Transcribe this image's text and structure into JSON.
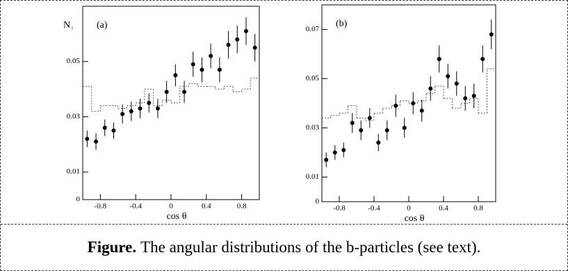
{
  "chart_data": [
    {
      "type": "scatter",
      "label": "(a)",
      "ylabel": "N",
      "ylabel_sub": "i",
      "xlabel": "cos θ",
      "x": [
        -0.95,
        -0.85,
        -0.75,
        -0.65,
        -0.55,
        -0.45,
        -0.35,
        -0.25,
        -0.15,
        -0.05,
        0.05,
        0.15,
        0.25,
        0.35,
        0.45,
        0.55,
        0.65,
        0.75,
        0.85,
        0.95
      ],
      "values": [
        0.022,
        0.021,
        0.026,
        0.025,
        0.031,
        0.032,
        0.033,
        0.035,
        0.033,
        0.039,
        0.045,
        0.039,
        0.049,
        0.047,
        0.052,
        0.047,
        0.056,
        0.058,
        0.061,
        0.055
      ],
      "errors": [
        0.003,
        0.003,
        0.003,
        0.003,
        0.0035,
        0.0035,
        0.0035,
        0.0035,
        0.0035,
        0.004,
        0.004,
        0.004,
        0.0045,
        0.0045,
        0.0045,
        0.0045,
        0.005,
        0.005,
        0.005,
        0.005
      ],
      "mc_bins": [
        -1,
        -0.9,
        -0.8,
        -0.7,
        -0.6,
        -0.5,
        -0.4,
        -0.3,
        -0.2,
        -0.1,
        0,
        0.1,
        0.2,
        0.3,
        0.4,
        0.5,
        0.6,
        0.7,
        0.8,
        0.9,
        1
      ],
      "mc_values": [
        0.041,
        0.032,
        0.034,
        0.034,
        0.033,
        0.034,
        0.035,
        0.04,
        0.034,
        0.036,
        0.035,
        0.041,
        0.042,
        0.041,
        0.041,
        0.04,
        0.041,
        0.039,
        0.04,
        0.044
      ],
      "color": "#000000",
      "mc_color": "#555555",
      "xlim": [
        -1,
        1
      ],
      "ylim": [
        0,
        0.07
      ],
      "xticks": [
        -0.8,
        -0.4,
        0,
        0.4,
        0.8
      ],
      "yticks": [
        0,
        0.01,
        0.03,
        0.05
      ]
    },
    {
      "type": "scatter",
      "label": "(b)",
      "xlabel": "cos θ",
      "x": [
        -0.95,
        -0.85,
        -0.75,
        -0.65,
        -0.55,
        -0.45,
        -0.35,
        -0.25,
        -0.15,
        -0.05,
        0.05,
        0.15,
        0.25,
        0.35,
        0.45,
        0.55,
        0.65,
        0.75,
        0.85,
        0.95
      ],
      "values": [
        0.017,
        0.02,
        0.021,
        0.032,
        0.029,
        0.034,
        0.024,
        0.029,
        0.039,
        0.03,
        0.04,
        0.037,
        0.046,
        0.058,
        0.051,
        0.048,
        0.042,
        0.043,
        0.058,
        0.068
      ],
      "errors": [
        0.003,
        0.003,
        0.003,
        0.004,
        0.004,
        0.004,
        0.0035,
        0.004,
        0.0045,
        0.004,
        0.0045,
        0.0045,
        0.005,
        0.0055,
        0.005,
        0.005,
        0.005,
        0.005,
        0.0055,
        0.006
      ],
      "mc_bins": [
        -1,
        -0.9,
        -0.8,
        -0.7,
        -0.6,
        -0.5,
        -0.4,
        -0.3,
        -0.2,
        -0.1,
        0,
        0.1,
        0.2,
        0.3,
        0.4,
        0.5,
        0.6,
        0.7,
        0.8,
        0.9,
        1
      ],
      "mc_values": [
        0.034,
        0.035,
        0.036,
        0.039,
        0.034,
        0.033,
        0.036,
        0.038,
        0.039,
        0.041,
        0.04,
        0.041,
        0.044,
        0.047,
        0.042,
        0.038,
        0.04,
        0.042,
        0.036,
        0.054
      ],
      "color": "#000000",
      "mc_color": "#555555",
      "xlim": [
        -1,
        1
      ],
      "ylim": [
        0,
        0.08
      ],
      "xticks": [
        -0.8,
        -0.4,
        0,
        0.4,
        0.8
      ],
      "yticks": [
        0,
        0.01,
        0.03,
        0.05,
        0.07
      ]
    }
  ],
  "caption": {
    "label": "Figure.",
    "text": "The angular distributions of the b-particles (see text)."
  }
}
